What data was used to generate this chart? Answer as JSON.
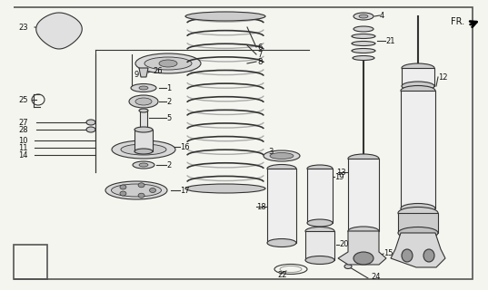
{
  "bg_color": "#f5f5f0",
  "border_color": "#444444",
  "line_color": "#333333",
  "text_color": "#111111",
  "gray_light": "#e8e8e8",
  "gray_mid": "#cccccc",
  "gray_dark": "#999999",
  "fig_w": 5.37,
  "fig_h": 3.2,
  "dpi": 100
}
